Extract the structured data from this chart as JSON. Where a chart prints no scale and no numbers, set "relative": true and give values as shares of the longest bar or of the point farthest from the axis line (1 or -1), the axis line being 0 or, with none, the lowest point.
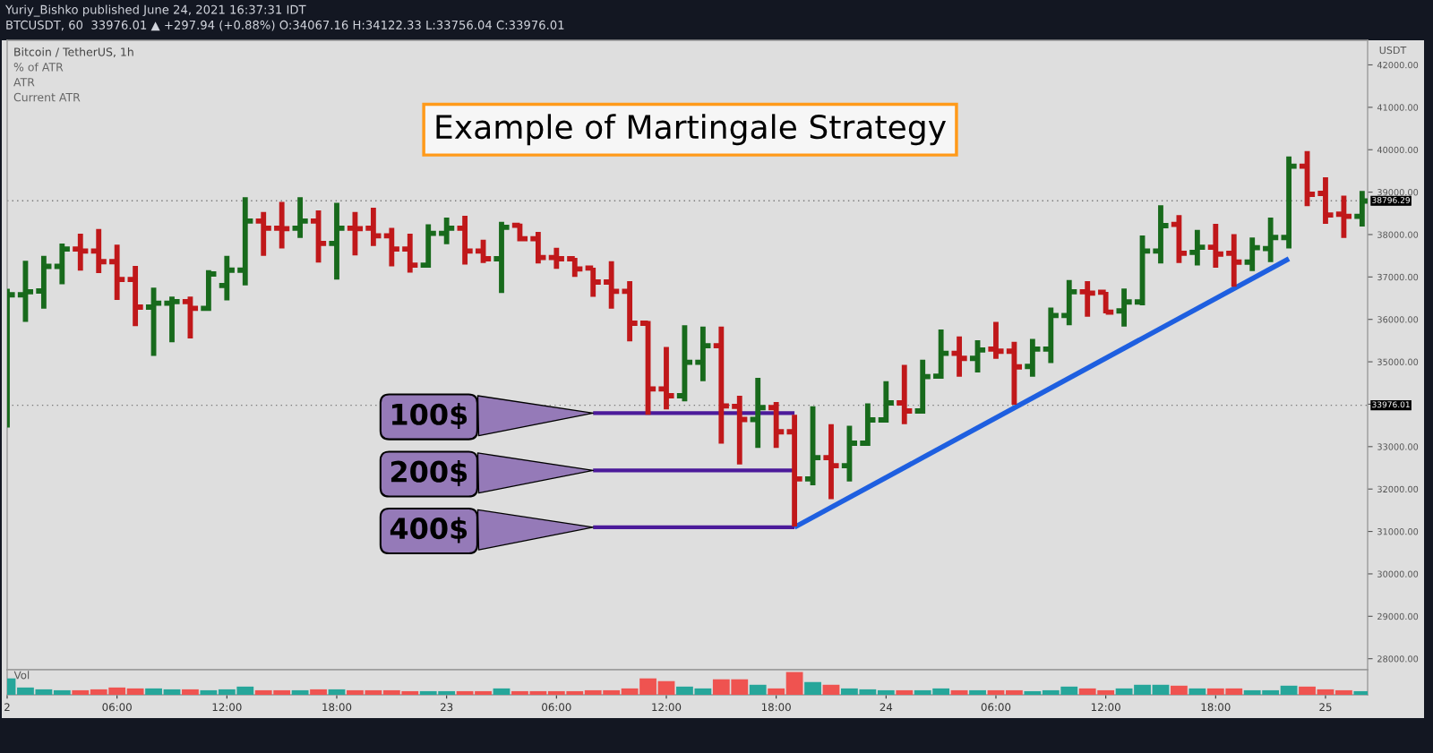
{
  "chart_data": [
    {
      "type": "candlestick",
      "title": "Example of Martingale Strategy",
      "ylabel": "USDT",
      "x": [
        "2021-06-22T00:00",
        "2021-06-22T01:00",
        "2021-06-22T02:00",
        "2021-06-22T03:00",
        "2021-06-22T04:00",
        "2021-06-22T05:00",
        "2021-06-22T06:00",
        "2021-06-22T07:00",
        "2021-06-22T08:00",
        "2021-06-22T09:00",
        "2021-06-22T10:00",
        "2021-06-22T11:00",
        "2021-06-22T12:00",
        "2021-06-22T13:00",
        "2021-06-22T14:00",
        "2021-06-22T15:00",
        "2021-06-22T16:00",
        "2021-06-22T17:00",
        "2021-06-22T18:00",
        "2021-06-22T19:00",
        "2021-06-22T20:00",
        "2021-06-22T21:00",
        "2021-06-22T22:00",
        "2021-06-22T23:00",
        "2021-06-23T00:00",
        "2021-06-23T01:00",
        "2021-06-23T02:00",
        "2021-06-23T03:00",
        "2021-06-23T04:00",
        "2021-06-23T05:00",
        "2021-06-23T06:00",
        "2021-06-23T07:00",
        "2021-06-23T08:00",
        "2021-06-23T09:00",
        "2021-06-23T10:00",
        "2021-06-23T11:00",
        "2021-06-23T12:00",
        "2021-06-23T13:00",
        "2021-06-23T14:00",
        "2021-06-23T15:00",
        "2021-06-23T16:00",
        "2021-06-23T17:00",
        "2021-06-23T18:00",
        "2021-06-23T19:00",
        "2021-06-23T20:00",
        "2021-06-23T21:00",
        "2021-06-23T22:00",
        "2021-06-23T23:00",
        "2021-06-24T00:00",
        "2021-06-24T01:00",
        "2021-06-24T02:00",
        "2021-06-24T03:00",
        "2021-06-24T04:00",
        "2021-06-24T05:00",
        "2021-06-24T06:00",
        "2021-06-24T07:00",
        "2021-06-24T08:00",
        "2021-06-24T09:00",
        "2021-06-24T10:00",
        "2021-06-24T11:00",
        "2021-06-24T12:00",
        "2021-06-24T13:00",
        "2021-06-24T14:00",
        "2021-06-24T15:00",
        "2021-06-24T16:00",
        "2021-06-24T17:00",
        "2021-06-24T18:00",
        "2021-06-24T19:00",
        "2021-06-24T20:00",
        "2021-06-24T21:00",
        "2021-06-24T22:00",
        "2021-06-24T23:00",
        "2021-06-25T00:00",
        "2021-06-25T01:00",
        "2021-06-25T02:00"
      ],
      "ohlc": [
        [
          36300,
          36720,
          33450,
          36580
        ],
        [
          36580,
          37380,
          35940,
          36650
        ],
        [
          36670,
          37500,
          36250,
          37250
        ],
        [
          37250,
          37790,
          36830,
          37660
        ],
        [
          37660,
          38020,
          37150,
          37610
        ],
        [
          37610,
          38130,
          37090,
          37360
        ],
        [
          37360,
          37760,
          36460,
          36940
        ],
        [
          36940,
          37260,
          35840,
          36290
        ],
        [
          36290,
          36750,
          35140,
          36380
        ],
        [
          36380,
          36540,
          35460,
          36420
        ],
        [
          36420,
          36540,
          35550,
          36260
        ],
        [
          36260,
          37160,
          36220,
          37070
        ],
        [
          36800,
          37500,
          36450,
          37160
        ],
        [
          37160,
          38880,
          36800,
          38320
        ],
        [
          38320,
          38530,
          37500,
          38150
        ],
        [
          38150,
          38770,
          37670,
          38140
        ],
        [
          38150,
          38880,
          37920,
          38320
        ],
        [
          38320,
          38570,
          37340,
          37790
        ],
        [
          37790,
          38750,
          36940,
          38150
        ],
        [
          38150,
          38530,
          37510,
          38140
        ],
        [
          38150,
          38630,
          37730,
          37970
        ],
        [
          37970,
          38160,
          37250,
          37660
        ],
        [
          37660,
          38020,
          37100,
          37280
        ],
        [
          37280,
          38240,
          37230,
          38030
        ],
        [
          38030,
          38400,
          37770,
          38150
        ],
        [
          38150,
          38440,
          37290,
          37610
        ],
        [
          37610,
          37880,
          37330,
          37430
        ],
        [
          37430,
          38300,
          36620,
          38170
        ],
        [
          38220,
          38260,
          37840,
          37900
        ],
        [
          37900,
          38060,
          37320,
          37460
        ],
        [
          37460,
          37690,
          37190,
          37430
        ],
        [
          37430,
          37450,
          37000,
          37190
        ],
        [
          37210,
          37220,
          36530,
          36880
        ],
        [
          36880,
          37370,
          36250,
          36660
        ],
        [
          36660,
          36900,
          35480,
          35910
        ],
        [
          35910,
          35960,
          33750,
          34360
        ],
        [
          34360,
          35350,
          33880,
          34200
        ],
        [
          34200,
          35860,
          34070,
          34990
        ],
        [
          34990,
          35830,
          34540,
          35380
        ],
        [
          35380,
          35830,
          33070,
          33960
        ],
        [
          33950,
          34200,
          32580,
          33640
        ],
        [
          33640,
          34620,
          32970,
          33920
        ],
        [
          33920,
          34050,
          32970,
          33350
        ],
        [
          33350,
          33750,
          31120,
          32240
        ],
        [
          32240,
          33950,
          32090,
          32740
        ],
        [
          32740,
          33530,
          31760,
          32550
        ],
        [
          32550,
          33490,
          32180,
          33080
        ],
        [
          33080,
          34020,
          33020,
          33630
        ],
        [
          33630,
          34540,
          33570,
          34030
        ],
        [
          34030,
          34930,
          33530,
          33840
        ],
        [
          33840,
          35050,
          33780,
          34650
        ],
        [
          34660,
          35760,
          34620,
          35200
        ],
        [
          35200,
          35600,
          34650,
          35080
        ],
        [
          35080,
          35510,
          34750,
          35280
        ],
        [
          35300,
          35940,
          35070,
          35250
        ],
        [
          35250,
          35470,
          33990,
          34880
        ],
        [
          34890,
          35540,
          34650,
          35300
        ],
        [
          35300,
          36280,
          34970,
          36090
        ],
        [
          36090,
          36930,
          35860,
          36650
        ],
        [
          36650,
          36900,
          36060,
          36620
        ],
        [
          36640,
          36650,
          36140,
          36170
        ],
        [
          36200,
          36730,
          35830,
          36410
        ],
        [
          36410,
          37980,
          36330,
          37610
        ],
        [
          37610,
          38690,
          37320,
          38210
        ],
        [
          38240,
          38460,
          37330,
          37560
        ],
        [
          37580,
          38110,
          37270,
          37700
        ],
        [
          37700,
          38250,
          37220,
          37540
        ],
        [
          37560,
          38010,
          36770,
          37350
        ],
        [
          37350,
          37930,
          37140,
          37690
        ],
        [
          37670,
          38400,
          37350,
          37930
        ],
        [
          37930,
          39840,
          37670,
          39610
        ],
        [
          39610,
          39970,
          38670,
          38950
        ],
        [
          38970,
          39350,
          38250,
          38460
        ],
        [
          38480,
          38920,
          37920,
          38430
        ],
        [
          38430,
          39030,
          38190,
          38790
        ]
      ],
      "colors": [
        "#186a1c",
        "#186a1c",
        "#186a1c",
        "#186a1c",
        "#c0181a",
        "#c0181a",
        "#c0181a",
        "#c0181a",
        "#186a1c",
        "#186a1c",
        "#c0181a",
        "#186a1c",
        "#186a1c",
        "#186a1c",
        "#c0181a",
        "#c0181a",
        "#186a1c",
        "#c0181a",
        "#186a1c",
        "#c0181a",
        "#c0181a",
        "#c0181a",
        "#c0181a",
        "#186a1c",
        "#186a1c",
        "#c0181a",
        "#c0181a",
        "#186a1c",
        "#c0181a",
        "#c0181a",
        "#c0181a",
        "#c0181a",
        "#c0181a",
        "#c0181a",
        "#c0181a",
        "#c0181a",
        "#c0181a",
        "#186a1c",
        "#186a1c",
        "#c0181a",
        "#c0181a",
        "#186a1c",
        "#c0181a",
        "#c0181a",
        "#186a1c",
        "#c0181a",
        "#186a1c",
        "#186a1c",
        "#186a1c",
        "#c0181a",
        "#186a1c",
        "#186a1c",
        "#c0181a",
        "#186a1c",
        "#c0181a",
        "#c0181a",
        "#186a1c",
        "#186a1c",
        "#186a1c",
        "#c0181a",
        "#c0181a",
        "#186a1c",
        "#186a1c",
        "#186a1c",
        "#c0181a",
        "#186a1c",
        "#c0181a",
        "#c0181a",
        "#186a1c",
        "#186a1c",
        "#186a1c",
        "#c0181a",
        "#c0181a",
        "#c0181a",
        "#186a1c"
      ],
      "series": [
        {
          "type": "line",
          "color": "#4b1a9a",
          "x": [
            "2021-06-23T08:00",
            "2021-06-23T19:00"
          ],
          "values": [
            33790,
            33790
          ]
        },
        {
          "type": "line",
          "color": "#4b1a9a",
          "x": [
            "2021-06-23T08:00",
            "2021-06-23T19:00"
          ],
          "values": [
            32440,
            32440
          ]
        },
        {
          "type": "line",
          "color": "#4b1a9a",
          "x": [
            "2021-06-23T08:00",
            "2021-06-23T19:00"
          ],
          "values": [
            31100,
            31100
          ]
        },
        {
          "type": "line",
          "color": "#1e5fe0",
          "x": [
            "2021-06-23T19:00",
            "2021-06-24T22:00"
          ],
          "values": [
            31100,
            37430
          ]
        }
      ],
      "annotations": [
        {
          "text": "100$",
          "x": "2021-06-23T08:00",
          "y": 33790
        },
        {
          "text": "200$",
          "x": "2021-06-23T08:00",
          "y": 32440
        },
        {
          "text": "400$",
          "x": "2021-06-23T08:00",
          "y": 31100
        },
        "Yuriy_Bishko published June 24, 2021 16:37:31 IDT",
        "BTCUSDT, 60  33976.01 ▲ +297.94 (+0.88%) O:34067.16 H:34122.33 L:33756.04 C:33976.01",
        "Bitcoin / TetherUS, 1h",
        "% of ATR",
        "ATR",
        "Current ATR"
      ],
      "ref_lines": [
        {
          "axis": "y",
          "value": 38796.29,
          "label": "38796.29"
        },
        {
          "axis": "y",
          "value": 33976.01,
          "label": "33976.01"
        }
      ],
      "xlim": [
        "2021-06-22T00:00",
        "2021-06-25T02:18"
      ],
      "ylim": [
        27740,
        42580
      ],
      "yticks": [
        {
          "value": 28000,
          "label": "28000.00"
        },
        {
          "value": 29000,
          "label": "29000.00"
        },
        {
          "value": 30000,
          "label": "30000.00"
        },
        {
          "value": 31000,
          "label": "31000.00"
        },
        {
          "value": 32000,
          "label": "32000.00"
        },
        {
          "value": 33000,
          "label": "33000.00"
        },
        {
          "value": 34000,
          "label": null
        },
        {
          "value": 35000,
          "label": "35000.00"
        },
        {
          "value": 36000,
          "label": "36000.00"
        },
        {
          "value": 37000,
          "label": "37000.00"
        },
        {
          "value": 38000,
          "label": "38000.00"
        },
        {
          "value": 39000,
          "label": "39000.00"
        },
        {
          "value": 40000,
          "label": "40000.00"
        },
        {
          "value": 41000,
          "label": "41000.00"
        },
        {
          "value": 42000,
          "label": "42000.00"
        }
      ],
      "tick_labels": "y",
      "grid": false,
      "legend": false
    },
    {
      "type": "bar",
      "title": "Vol",
      "relative": true,
      "x": [
        "2021-06-22T00:00",
        "2021-06-22T01:00",
        "2021-06-22T02:00",
        "2021-06-22T03:00",
        "2021-06-22T04:00",
        "2021-06-22T05:00",
        "2021-06-22T06:00",
        "2021-06-22T07:00",
        "2021-06-22T08:00",
        "2021-06-22T09:00",
        "2021-06-22T10:00",
        "2021-06-22T11:00",
        "2021-06-22T12:00",
        "2021-06-22T13:00",
        "2021-06-22T14:00",
        "2021-06-22T15:00",
        "2021-06-22T16:00",
        "2021-06-22T17:00",
        "2021-06-22T18:00",
        "2021-06-22T19:00",
        "2021-06-22T20:00",
        "2021-06-22T21:00",
        "2021-06-22T22:00",
        "2021-06-22T23:00",
        "2021-06-23T00:00",
        "2021-06-23T01:00",
        "2021-06-23T02:00",
        "2021-06-23T03:00",
        "2021-06-23T04:00",
        "2021-06-23T05:00",
        "2021-06-23T06:00",
        "2021-06-23T07:00",
        "2021-06-23T08:00",
        "2021-06-23T09:00",
        "2021-06-23T10:00",
        "2021-06-23T11:00",
        "2021-06-23T12:00",
        "2021-06-23T13:00",
        "2021-06-23T14:00",
        "2021-06-23T15:00",
        "2021-06-23T16:00",
        "2021-06-23T17:00",
        "2021-06-23T18:00",
        "2021-06-23T19:00",
        "2021-06-23T20:00",
        "2021-06-23T21:00",
        "2021-06-23T22:00",
        "2021-06-23T23:00",
        "2021-06-24T00:00",
        "2021-06-24T01:00",
        "2021-06-24T02:00",
        "2021-06-24T03:00",
        "2021-06-24T04:00",
        "2021-06-24T05:00",
        "2021-06-24T06:00",
        "2021-06-24T07:00",
        "2021-06-24T08:00",
        "2021-06-24T09:00",
        "2021-06-24T10:00",
        "2021-06-24T11:00",
        "2021-06-24T12:00",
        "2021-06-24T13:00",
        "2021-06-24T14:00",
        "2021-06-24T15:00",
        "2021-06-24T16:00",
        "2021-06-24T17:00",
        "2021-06-24T18:00",
        "2021-06-24T19:00",
        "2021-06-24T20:00",
        "2021-06-24T21:00",
        "2021-06-24T22:00",
        "2021-06-24T23:00",
        "2021-06-25T00:00",
        "2021-06-25T01:00",
        "2021-06-25T02:00"
      ],
      "values": [
        0.72,
        0.32,
        0.24,
        0.2,
        0.2,
        0.24,
        0.32,
        0.28,
        0.28,
        0.24,
        0.24,
        0.2,
        0.24,
        0.36,
        0.2,
        0.2,
        0.2,
        0.24,
        0.24,
        0.2,
        0.2,
        0.2,
        0.16,
        0.16,
        0.16,
        0.16,
        0.16,
        0.28,
        0.16,
        0.16,
        0.16,
        0.16,
        0.2,
        0.2,
        0.28,
        0.72,
        0.6,
        0.36,
        0.28,
        0.68,
        0.68,
        0.44,
        0.28,
        1,
        0.56,
        0.44,
        0.28,
        0.24,
        0.2,
        0.2,
        0.2,
        0.28,
        0.2,
        0.2,
        0.2,
        0.2,
        0.16,
        0.2,
        0.36,
        0.28,
        0.2,
        0.28,
        0.44,
        0.44,
        0.4,
        0.28,
        0.28,
        0.28,
        0.2,
        0.2,
        0.4,
        0.36,
        0.24,
        0.2,
        0.16
      ],
      "colors": [
        "#26a69a",
        "#26a69a",
        "#26a69a",
        "#26a69a",
        "#ef5350",
        "#ef5350",
        "#ef5350",
        "#ef5350",
        "#26a69a",
        "#26a69a",
        "#ef5350",
        "#26a69a",
        "#26a69a",
        "#26a69a",
        "#ef5350",
        "#ef5350",
        "#26a69a",
        "#ef5350",
        "#26a69a",
        "#ef5350",
        "#ef5350",
        "#ef5350",
        "#ef5350",
        "#26a69a",
        "#26a69a",
        "#ef5350",
        "#ef5350",
        "#26a69a",
        "#ef5350",
        "#ef5350",
        "#ef5350",
        "#ef5350",
        "#ef5350",
        "#ef5350",
        "#ef5350",
        "#ef5350",
        "#ef5350",
        "#26a69a",
        "#26a69a",
        "#ef5350",
        "#ef5350",
        "#26a69a",
        "#ef5350",
        "#ef5350",
        "#26a69a",
        "#ef5350",
        "#26a69a",
        "#26a69a",
        "#26a69a",
        "#ef5350",
        "#26a69a",
        "#26a69a",
        "#ef5350",
        "#26a69a",
        "#ef5350",
        "#ef5350",
        "#26a69a",
        "#26a69a",
        "#26a69a",
        "#ef5350",
        "#ef5350",
        "#26a69a",
        "#26a69a",
        "#26a69a",
        "#ef5350",
        "#26a69a",
        "#ef5350",
        "#ef5350",
        "#26a69a",
        "#26a69a",
        "#26a69a",
        "#ef5350",
        "#ef5350",
        "#ef5350",
        "#26a69a"
      ],
      "xlim": [
        "2021-06-22T00:00",
        "2021-06-25T02:18"
      ],
      "xticks": [
        {
          "value": "2021-06-22T00:00",
          "label": "2"
        },
        {
          "value": "2021-06-22T06:00",
          "label": "06:00"
        },
        {
          "value": "2021-06-22T12:00",
          "label": "12:00"
        },
        {
          "value": "2021-06-22T18:00",
          "label": "18:00"
        },
        {
          "value": "2021-06-23T00:00",
          "label": "23"
        },
        {
          "value": "2021-06-23T06:00",
          "label": "06:00"
        },
        {
          "value": "2021-06-23T12:00",
          "label": "12:00"
        },
        {
          "value": "2021-06-23T18:00",
          "label": "18:00"
        },
        {
          "value": "2021-06-24T00:00",
          "label": "24"
        },
        {
          "value": "2021-06-24T06:00",
          "label": "06:00"
        },
        {
          "value": "2021-06-24T12:00",
          "label": "12:00"
        },
        {
          "value": "2021-06-24T18:00",
          "label": "18:00"
        },
        {
          "value": "2021-06-25T00:00",
          "label": "25"
        }
      ],
      "tick_labels": "x",
      "grid": false,
      "legend": false
    }
  ]
}
